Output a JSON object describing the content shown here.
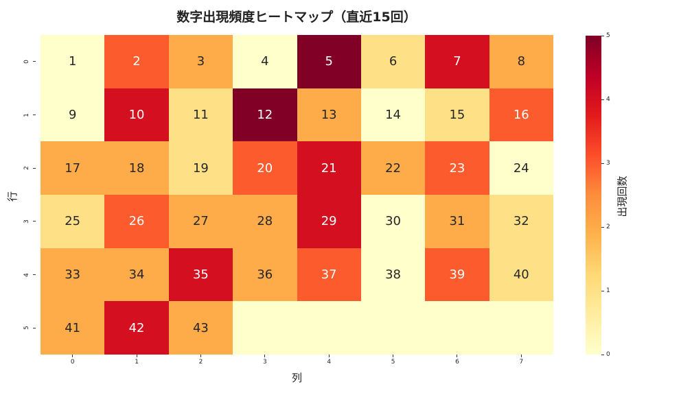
{
  "chart_data": {
    "type": "heatmap",
    "title": "数字出現頻度ヒートマップ（直近15回）",
    "xlabel": "列",
    "ylabel": "行",
    "colorbar_label": "出現回数",
    "colormap": "YlOrRd",
    "vmin": 0,
    "vmax": 5,
    "x_ticks": [
      "0",
      "1",
      "2",
      "3",
      "4",
      "5",
      "6",
      "7"
    ],
    "y_ticks": [
      "0",
      "1",
      "2",
      "3",
      "4",
      "5"
    ],
    "colorbar_ticks": [
      "0",
      "1",
      "2",
      "3",
      "4",
      "5"
    ],
    "annotations": [
      [
        "1",
        "2",
        "3",
        "4",
        "5",
        "6",
        "7",
        "8"
      ],
      [
        "9",
        "10",
        "11",
        "12",
        "13",
        "14",
        "15",
        "16"
      ],
      [
        "17",
        "18",
        "19",
        "20",
        "21",
        "22",
        "23",
        "24"
      ],
      [
        "25",
        "26",
        "27",
        "28",
        "29",
        "30",
        "31",
        "32"
      ],
      [
        "33",
        "34",
        "35",
        "36",
        "37",
        "38",
        "39",
        "40"
      ],
      [
        "41",
        "42",
        "43",
        "",
        "",
        "",
        "",
        ""
      ]
    ],
    "values": [
      [
        0,
        3,
        2,
        0,
        5,
        1,
        4,
        2
      ],
      [
        0,
        4,
        1,
        5,
        2,
        0,
        1,
        3
      ],
      [
        2,
        2,
        1,
        3,
        4,
        2,
        3,
        0
      ],
      [
        1,
        3,
        2,
        2,
        4,
        0,
        2,
        1
      ],
      [
        2,
        2,
        4,
        2,
        3,
        0,
        3,
        1
      ],
      [
        2,
        4,
        2,
        0,
        0,
        0,
        0,
        0
      ]
    ],
    "level_colors": [
      "#ffffcc",
      "#fee187",
      "#feab49",
      "#fc5b2e",
      "#d41020",
      "#800026"
    ]
  }
}
